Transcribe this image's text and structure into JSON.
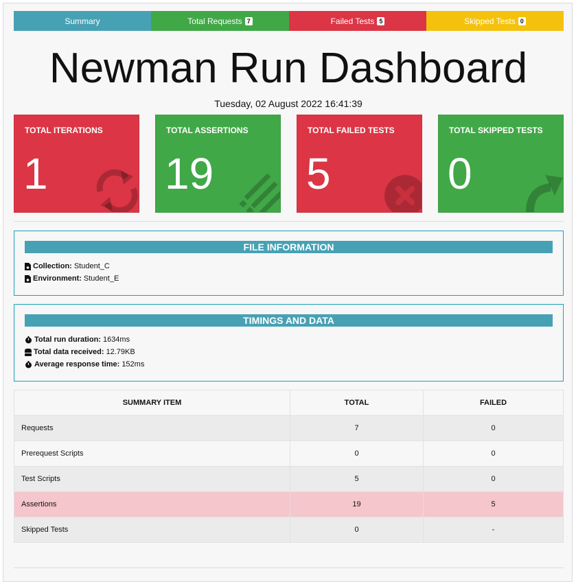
{
  "tabs": [
    {
      "label": "Summary",
      "badge": ""
    },
    {
      "label": "Total Requests",
      "badge": "7"
    },
    {
      "label": "Failed Tests",
      "badge": "5"
    },
    {
      "label": "Skipped Tests",
      "badge": "0"
    }
  ],
  "header": {
    "title": "Newman Run Dashboard",
    "timestamp": "Tuesday, 02 August 2022 16:41:39"
  },
  "cards": [
    {
      "label": "TOTAL ITERATIONS",
      "value": "1",
      "color": "#dc3545",
      "icon": "refresh-icon"
    },
    {
      "label": "TOTAL ASSERTIONS",
      "value": "19",
      "color": "#41a847",
      "icon": "list-icon"
    },
    {
      "label": "TOTAL FAILED TESTS",
      "value": "5",
      "color": "#dc3545",
      "icon": "close-circle-icon"
    },
    {
      "label": "TOTAL SKIPPED TESTS",
      "value": "0",
      "color": "#41a847",
      "icon": "share-arrow-icon"
    }
  ],
  "file_info": {
    "heading": "FILE INFORMATION",
    "collection_label": "Collection:",
    "collection_value": "Student_C",
    "environment_label": "Environment:",
    "environment_value": "Student_E"
  },
  "timings": {
    "heading": "TIMINGS AND DATA",
    "duration_label": "Total run duration:",
    "duration_value": "1634ms",
    "data_label": "Total data received:",
    "data_value": "12.79KB",
    "response_label": "Average response time:",
    "response_value": "152ms"
  },
  "table": {
    "headers": [
      "SUMMARY ITEM",
      "TOTAL",
      "FAILED"
    ],
    "rows": [
      {
        "item": "Requests",
        "total": "7",
        "failed": "0"
      },
      {
        "item": "Prerequest Scripts",
        "total": "0",
        "failed": "0"
      },
      {
        "item": "Test Scripts",
        "total": "5",
        "failed": "0"
      },
      {
        "item": "Assertions",
        "total": "19",
        "failed": "5"
      },
      {
        "item": "Skipped Tests",
        "total": "0",
        "failed": "-"
      }
    ]
  }
}
